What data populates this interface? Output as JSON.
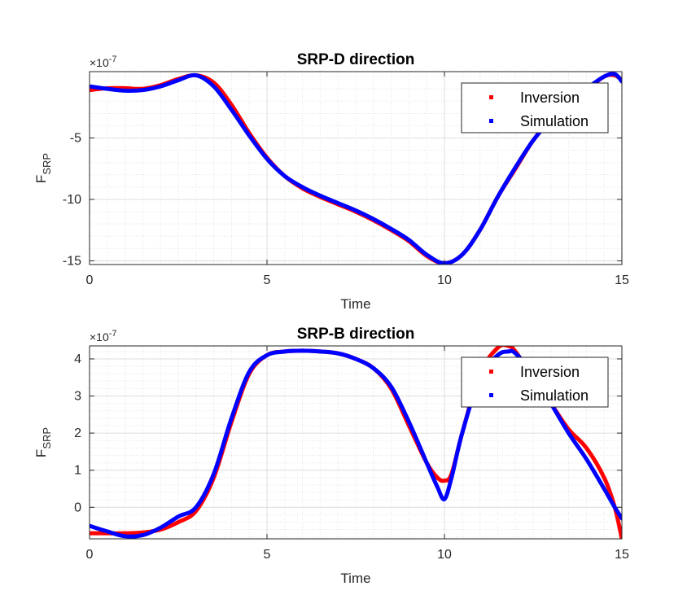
{
  "chart_data": [
    {
      "type": "line",
      "title": "SRP-D direction",
      "xlabel": "Time",
      "ylabel_main": "F",
      "ylabel_sub": "SRP",
      "exponent_label": "×10",
      "exponent_power": "-7",
      "xlim": [
        0,
        15
      ],
      "ylim": [
        -15.3,
        0.4
      ],
      "xticks": [
        0,
        5,
        10,
        15
      ],
      "xtick_labels": [
        "0",
        "5",
        "10",
        "15"
      ],
      "yticks": [
        -15,
        -10,
        -5
      ],
      "ytick_labels": [
        "-15",
        "-10",
        "-5"
      ],
      "grid": true,
      "legend_position": "top-right",
      "series": [
        {
          "name": "Inversion",
          "color": "#ff0000",
          "x": [
            0,
            0.5,
            1,
            1.5,
            2,
            2.5,
            3,
            3.5,
            4,
            4.5,
            5,
            5.5,
            6,
            6.5,
            7,
            7.5,
            8,
            8.5,
            9,
            9.5,
            10,
            10.5,
            11,
            11.5,
            12,
            12.5,
            13,
            13.5,
            14,
            14.5,
            14.8,
            15
          ],
          "values": [
            -1.1,
            -0.95,
            -0.95,
            -1.0,
            -0.7,
            -0.2,
            0.1,
            -0.5,
            -2.3,
            -4.6,
            -6.6,
            -8.1,
            -9.1,
            -9.8,
            -10.4,
            -11.0,
            -11.7,
            -12.5,
            -13.4,
            -14.6,
            -15.2,
            -14.5,
            -12.5,
            -9.8,
            -7.5,
            -5.2,
            -3.5,
            -2.2,
            -1.1,
            0.0,
            0.1,
            -0.3
          ]
        },
        {
          "name": "Simulation",
          "color": "#0000ff",
          "x": [
            0,
            0.5,
            1,
            1.5,
            2,
            2.5,
            3,
            3.5,
            4,
            4.5,
            5,
            5.5,
            6,
            6.5,
            7,
            7.5,
            8,
            8.5,
            9,
            9.5,
            10,
            10.5,
            11,
            11.5,
            12,
            12.5,
            13,
            13.5,
            14,
            14.5,
            14.8,
            15
          ],
          "values": [
            -0.8,
            -1.0,
            -1.15,
            -1.1,
            -0.8,
            -0.3,
            0.1,
            -0.8,
            -2.7,
            -4.8,
            -6.7,
            -8.1,
            -9.0,
            -9.7,
            -10.3,
            -10.9,
            -11.6,
            -12.4,
            -13.3,
            -14.5,
            -15.2,
            -14.5,
            -12.5,
            -9.8,
            -7.4,
            -5.2,
            -3.5,
            -2.2,
            -1.0,
            0.0,
            0.2,
            -0.4
          ]
        }
      ]
    },
    {
      "type": "line",
      "title": "SRP-B direction",
      "xlabel": "Time",
      "ylabel_main": "F",
      "ylabel_sub": "SRP",
      "exponent_label": "×10",
      "exponent_power": "-7",
      "xlim": [
        0,
        15
      ],
      "ylim": [
        -0.85,
        4.35
      ],
      "xticks": [
        0,
        5,
        10,
        15
      ],
      "xtick_labels": [
        "0",
        "5",
        "10",
        "15"
      ],
      "yticks": [
        0,
        1,
        2,
        3,
        4
      ],
      "ytick_labels": [
        "0",
        "1",
        "2",
        "3",
        "4"
      ],
      "grid": true,
      "legend_position": "top-right",
      "series": [
        {
          "name": "Inversion",
          "color": "#ff0000",
          "x": [
            0,
            0.5,
            1,
            1.5,
            2,
            2.5,
            3,
            3.5,
            4,
            4.5,
            5,
            5.5,
            6,
            6.5,
            7,
            7.5,
            8,
            8.5,
            9,
            9.5,
            9.8,
            10,
            10.2,
            10.5,
            11,
            11.5,
            11.8,
            12,
            12.5,
            13,
            13.5,
            14,
            14.5,
            14.8,
            15
          ],
          "values": [
            -0.7,
            -0.7,
            -0.7,
            -0.68,
            -0.6,
            -0.4,
            -0.1,
            0.8,
            2.3,
            3.6,
            4.1,
            4.2,
            4.22,
            4.2,
            4.15,
            4.0,
            3.75,
            3.2,
            2.2,
            1.2,
            0.8,
            0.72,
            0.9,
            2.0,
            3.6,
            4.3,
            4.35,
            4.2,
            3.5,
            2.8,
            2.1,
            1.6,
            0.8,
            0.0,
            -0.85
          ]
        },
        {
          "name": "Simulation",
          "color": "#0000ff",
          "x": [
            0,
            0.5,
            1,
            1.5,
            2,
            2.5,
            3,
            3.5,
            4,
            4.5,
            5,
            5.5,
            6,
            6.5,
            7,
            7.5,
            8,
            8.5,
            9,
            9.5,
            9.8,
            10,
            10.2,
            10.5,
            11,
            11.5,
            11.8,
            12,
            12.5,
            13,
            13.5,
            14,
            14.5,
            14.8,
            15
          ],
          "values": [
            -0.5,
            -0.65,
            -0.78,
            -0.75,
            -0.55,
            -0.25,
            0.0,
            0.9,
            2.4,
            3.65,
            4.1,
            4.2,
            4.22,
            4.2,
            4.15,
            4.0,
            3.75,
            3.25,
            2.3,
            1.2,
            0.55,
            0.22,
            0.8,
            2.0,
            3.5,
            4.1,
            4.2,
            4.15,
            3.6,
            2.8,
            2.0,
            1.3,
            0.5,
            0.0,
            -0.3
          ]
        }
      ]
    }
  ]
}
